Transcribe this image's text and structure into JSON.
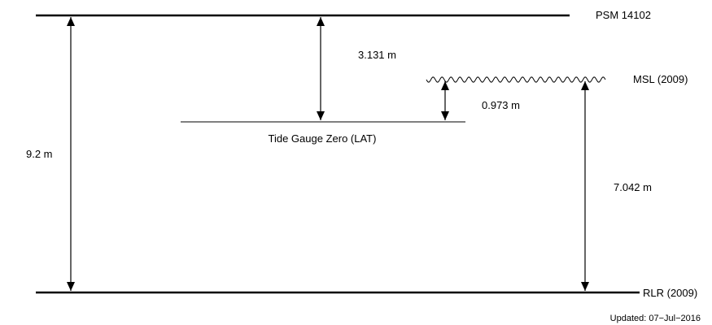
{
  "levels": {
    "psm": "PSM 14102",
    "msl": "MSL (2009)",
    "tide_gauge_zero": "Tide Gauge Zero (LAT)",
    "rlr": "RLR (2009)"
  },
  "measurements": {
    "psm_to_rlr": "9.2 m",
    "psm_to_tgz": "3.131 m",
    "msl_to_tgz": "0.973 m",
    "msl_to_rlr": "7.042 m"
  },
  "footer": {
    "updated": "Updated: 07−Jul−2016"
  }
}
